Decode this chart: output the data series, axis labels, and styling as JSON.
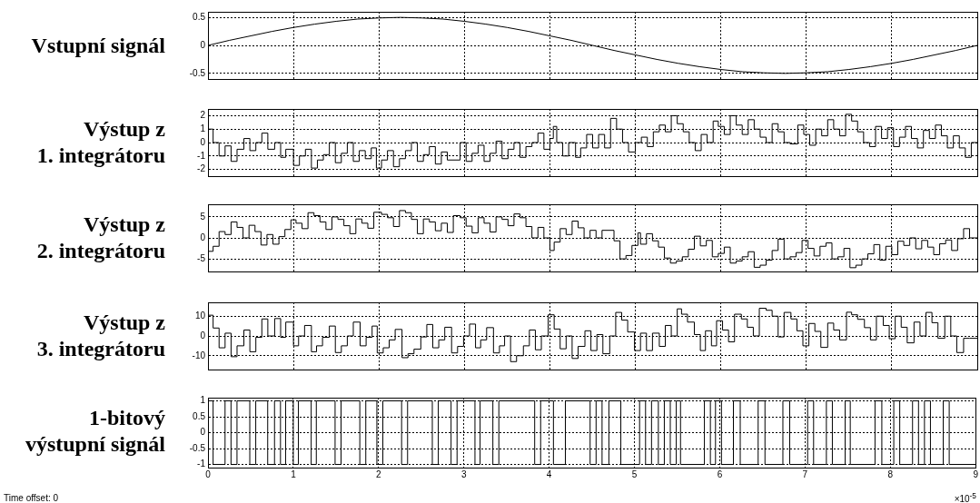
{
  "chart_data": [
    {
      "type": "line",
      "ylabel": "Vstupní signál",
      "xlim": [
        0,
        9
      ],
      "xticks": [
        0,
        1,
        2,
        3,
        4,
        5,
        6,
        7,
        8,
        9
      ],
      "ylim": [
        -0.6,
        0.6
      ],
      "yticks": [
        -0.5,
        0,
        0.5
      ],
      "grid": true,
      "tick_labels": "y",
      "x": [
        0,
        0.25,
        0.5,
        0.75,
        1,
        1.25,
        1.5,
        1.75,
        2,
        2.25,
        2.5,
        2.75,
        3,
        3.25,
        3.5,
        3.75,
        4,
        4.25,
        4.5,
        4.75,
        5,
        5.25,
        5.5,
        5.75,
        6,
        6.25,
        6.5,
        6.75,
        7,
        7.25,
        7.5,
        7.75,
        8,
        8.25,
        8.5,
        8.75,
        9
      ],
      "series": [
        {
          "color": "#000000",
          "values": [
            0,
            0.09,
            0.17,
            0.25,
            0.32,
            0.38,
            0.43,
            0.47,
            0.49,
            0.5,
            0.49,
            0.47,
            0.43,
            0.38,
            0.32,
            0.25,
            0.17,
            0.09,
            0,
            -0.09,
            -0.17,
            -0.25,
            -0.32,
            -0.38,
            -0.43,
            -0.47,
            -0.49,
            -0.5,
            -0.49,
            -0.47,
            -0.43,
            -0.38,
            -0.32,
            -0.25,
            -0.17,
            -0.09,
            0
          ]
        }
      ]
    },
    {
      "type": "step",
      "ylabel": "Výstup z\n1. integrátoru",
      "xlim": [
        0,
        9
      ],
      "xticks": [
        0,
        1,
        2,
        3,
        4,
        5,
        6,
        7,
        8,
        9
      ],
      "ylim": [
        -2.5,
        2.5
      ],
      "yticks": [
        -2,
        -1,
        0,
        1,
        2
      ],
      "grid": true,
      "tick_labels": "y",
      "x": [
        0,
        0.06,
        0.13,
        0.2,
        0.27,
        0.34,
        0.42,
        0.49,
        0.56,
        0.63,
        0.7,
        0.78,
        0.85,
        0.91,
        1.0,
        1.07,
        1.14,
        1.21,
        1.28,
        1.35,
        1.42,
        1.49,
        1.56,
        1.63,
        1.7,
        1.77,
        1.84,
        1.91,
        1.97,
        2.03,
        2.1,
        2.17,
        2.24,
        2.31,
        2.38,
        2.45,
        2.52,
        2.59,
        2.66,
        2.73,
        2.8,
        2.95,
        3.02,
        3.09,
        3.16,
        3.23,
        3.3,
        3.37,
        3.44,
        3.51,
        3.58,
        3.65,
        3.72,
        3.79,
        3.86,
        3.93,
        4.0,
        4.04,
        4.08,
        4.15,
        4.22,
        4.3,
        4.36,
        4.43,
        4.5,
        4.57,
        4.64,
        4.71,
        4.78,
        4.85,
        4.92,
        5.0,
        5.07,
        5.14,
        5.21,
        5.28,
        5.35,
        5.42,
        5.49,
        5.56,
        5.63,
        5.7,
        5.77,
        5.84,
        5.91,
        5.97,
        6.04,
        6.11,
        6.18,
        6.25,
        6.32,
        6.39,
        6.46,
        6.53,
        6.6,
        6.67,
        6.74,
        6.81,
        6.9,
        6.97,
        7.04,
        7.11,
        7.18,
        7.25,
        7.32,
        7.39,
        7.46,
        7.53,
        7.6,
        7.67,
        7.74,
        7.81,
        7.88,
        7.95,
        8.02,
        8.09,
        8.16,
        8.23,
        8.3,
        8.37,
        8.44,
        8.51,
        8.58,
        8.65,
        8.72,
        8.79,
        8.86,
        8.93,
        9
      ],
      "series": [
        {
          "color": "#000000",
          "values": [
            0,
            1,
            0,
            -1,
            -0.25,
            -1.4,
            -0.5,
            0.3,
            -0.6,
            0,
            0.7,
            -0.5,
            0,
            -1.1,
            -0.5,
            -1.7,
            -1,
            -0.5,
            -1.9,
            -1.3,
            -0.9,
            0,
            -1.5,
            -0.8,
            0,
            -1.4,
            -0.6,
            -1.2,
            -0.4,
            -1.9,
            -1.3,
            -0.6,
            -1.8,
            -1.2,
            -0.6,
            0,
            -1.4,
            -0.9,
            -0.3,
            -1.6,
            -0.7,
            -1.3,
            0,
            -1.4,
            -0.8,
            -0.2,
            -1.4,
            -0.8,
            0.1,
            -1.2,
            -0.5,
            0,
            -1.1,
            -0.3,
            0,
            0.7,
            -0.5,
            0.3,
            1.2,
            0,
            -1,
            0,
            -1.1,
            -0.4,
            0.6,
            -0.4,
            0.6,
            -0.4,
            1.8,
            1,
            0,
            -0.7,
            0,
            0.4,
            -0.3,
            0.8,
            1.3,
            0.8,
            2,
            1.4,
            0.8,
            0,
            -0.6,
            0.6,
            0,
            1.6,
            1.2,
            0.6,
            2,
            1.3,
            0.6,
            1.7,
            1,
            0.4,
            0,
            1.4,
            0.8,
            0,
            -0.1,
            1.3,
            0.6,
            -0.2,
            1,
            0.5,
            1.7,
            1,
            0.5,
            2.1,
            1.6,
            0.8,
            0,
            -0.3,
            1.2,
            0.3,
            1.1,
            -0.3,
            0.4,
            1.2,
            0.3,
            -0.4,
            0.9,
            0.3,
            1.3,
            0.5,
            -0.4,
            0.5,
            -0.4,
            -1.1,
            0
          ]
        }
      ]
    },
    {
      "type": "step",
      "ylabel": "Výstup z\n2. integrátoru",
      "xlim": [
        0,
        9
      ],
      "xticks": [
        0,
        1,
        2,
        3,
        4,
        5,
        6,
        7,
        8,
        9
      ],
      "ylim": [
        -8,
        8
      ],
      "yticks": [
        -5,
        0,
        5
      ],
      "grid": true,
      "tick_labels": "y",
      "x": [
        0,
        0.06,
        0.13,
        0.2,
        0.27,
        0.34,
        0.41,
        0.48,
        0.55,
        0.62,
        0.69,
        0.76,
        0.83,
        0.9,
        0.97,
        1.03,
        1.1,
        1.17,
        1.24,
        1.31,
        1.38,
        1.45,
        1.52,
        1.59,
        1.66,
        1.73,
        1.8,
        1.87,
        1.94,
        2.03,
        2.1,
        2.17,
        2.24,
        2.31,
        2.38,
        2.45,
        2.52,
        2.59,
        2.66,
        2.73,
        2.8,
        2.87,
        2.95,
        3.02,
        3.09,
        3.16,
        3.23,
        3.3,
        3.37,
        3.44,
        3.51,
        3.58,
        3.65,
        3.72,
        3.79,
        3.86,
        3.93,
        4.0,
        4.05,
        4.12,
        4.19,
        4.26,
        4.33,
        4.4,
        4.47,
        4.54,
        4.61,
        4.75,
        4.82,
        4.89,
        4.96,
        5.03,
        5.06,
        5.13,
        5.2,
        5.27,
        5.34,
        5.41,
        5.48,
        5.55,
        5.62,
        5.69,
        5.76,
        5.83,
        5.9,
        5.97,
        6.04,
        6.11,
        6.18,
        6.25,
        6.32,
        6.39,
        6.46,
        6.53,
        6.6,
        6.67,
        6.74,
        6.81,
        6.88,
        6.95,
        7.02,
        7.09,
        7.16,
        7.23,
        7.3,
        7.37,
        7.44,
        7.51,
        7.58,
        7.65,
        7.72,
        7.79,
        7.86,
        7.93,
        8.0,
        8.07,
        8.14,
        8.21,
        8.28,
        8.35,
        8.42,
        8.49,
        8.56,
        8.63,
        8.7,
        8.77,
        8.84,
        8.91,
        8.97,
        9
      ],
      "series": [
        {
          "color": "#000000",
          "values": [
            0,
            -3.2,
            -2,
            1.5,
            0.8,
            3.8,
            2.5,
            0,
            3,
            1.5,
            -1.7,
            0.8,
            -1.5,
            0.3,
            2,
            4.3,
            3.5,
            2.2,
            6,
            5.3,
            3.8,
            2,
            5,
            4.4,
            2.9,
            1,
            4.5,
            3.5,
            2.3,
            6.1,
            5.6,
            4.8,
            2.7,
            6.5,
            6,
            4.4,
            1,
            4.5,
            3.8,
            1.7,
            3.5,
            1.3,
            5.3,
            4.8,
            2.8,
            1.2,
            4.8,
            3.5,
            1.4,
            5,
            4.4,
            2.9,
            5.7,
            4.8,
            2.7,
            0,
            2.5,
            0,
            -3,
            -1,
            2.2,
            0.8,
            4,
            2.4,
            0,
            1.8,
            0,
            1.8,
            -0.7,
            -5,
            -4.2,
            -1.8,
            1.2,
            -1.5,
            1,
            -0.7,
            -2.2,
            -4.8,
            -6,
            -5.5,
            -4.5,
            -2.7,
            0.4,
            -1.9,
            -0.6,
            -4.5,
            -3.7,
            -2.2,
            -6,
            -5.5,
            -4.5,
            -3.3,
            -7,
            -6.5,
            -5.3,
            -3,
            -0.3,
            -5,
            -4.5,
            -3.5,
            -0.6,
            -2.5,
            -4.3,
            -2,
            -1.2,
            -5,
            -4.5,
            -2.5,
            -7.1,
            -6.5,
            -5,
            -3.8,
            -1.6,
            -5.3,
            -2,
            -4,
            -0.8,
            -1.8,
            0,
            -2.6,
            -0.6,
            -2.2,
            -4,
            -1.4,
            -0.5,
            -3,
            -0.2,
            2.2,
            0,
            0
          ]
        }
      ]
    },
    {
      "type": "step",
      "ylabel": "Výstup z\n3. integrátoru",
      "xlim": [
        0,
        9
      ],
      "xticks": [
        0,
        1,
        2,
        3,
        4,
        5,
        6,
        7,
        8,
        9
      ],
      "ylim": [
        -17,
        17
      ],
      "yticks": [
        -10,
        0,
        10
      ],
      "grid": true,
      "tick_labels": "y",
      "x": [
        0,
        0.06,
        0.13,
        0.2,
        0.27,
        0.34,
        0.42,
        0.49,
        0.56,
        0.63,
        0.7,
        0.78,
        0.85,
        0.91,
        1.0,
        1.06,
        1.13,
        1.21,
        1.27,
        1.34,
        1.42,
        1.49,
        1.56,
        1.63,
        1.7,
        1.78,
        1.85,
        1.92,
        1.98,
        2.05,
        2.12,
        2.19,
        2.27,
        2.34,
        2.41,
        2.49,
        2.56,
        2.63,
        2.7,
        2.77,
        2.85,
        2.92,
        2.99,
        3.06,
        3.13,
        3.19,
        3.26,
        3.34,
        3.41,
        3.47,
        3.54,
        3.61,
        3.69,
        3.76,
        3.83,
        3.9,
        3.98,
        4.05,
        4.12,
        4.19,
        4.26,
        4.33,
        4.41,
        4.48,
        4.55,
        4.62,
        4.7,
        4.77,
        4.84,
        4.91,
        4.99,
        5.06,
        5.13,
        5.2,
        5.28,
        5.35,
        5.42,
        5.49,
        5.54,
        5.61,
        5.69,
        5.76,
        5.82,
        5.89,
        5.95,
        6.02,
        6.09,
        6.16,
        6.24,
        6.31,
        6.38,
        6.45,
        6.53,
        6.6,
        6.67,
        6.74,
        6.82,
        6.89,
        6.96,
        7.03,
        7.1,
        7.17,
        7.25,
        7.32,
        7.39,
        7.47,
        7.53,
        7.6,
        7.68,
        7.75,
        7.82,
        7.9,
        7.97,
        8.04,
        8.11,
        8.18,
        8.26,
        8.33,
        8.4,
        8.47,
        8.54,
        8.62,
        8.69,
        8.76,
        8.84,
        8.91,
        9
      ],
      "series": [
        {
          "color": "#000000",
          "values": [
            0,
            10.5,
            4,
            -6,
            1.4,
            -10.5,
            -5,
            3,
            -8,
            -0.7,
            8.6,
            0,
            8.8,
            -0.7,
            7,
            -5,
            0,
            5.3,
            -8,
            -5,
            -0.7,
            5,
            -8.4,
            -5,
            0,
            7,
            -5,
            -0.7,
            5,
            -8.6,
            -6,
            -2,
            3.3,
            -11,
            -9,
            -6.7,
            -0.5,
            5.8,
            -6,
            -2,
            4.4,
            -8.6,
            -5.3,
            0,
            6,
            -6,
            -2,
            4.2,
            -8.6,
            -5,
            0,
            -13,
            -10,
            -5,
            3,
            -7,
            0,
            10.7,
            3.5,
            -6.5,
            0,
            -11.4,
            -5.3,
            2.6,
            -7.4,
            0.7,
            -9,
            0,
            11.9,
            8,
            2,
            -7.4,
            1.4,
            -7.4,
            1.4,
            -5.3,
            5.3,
            0,
            13.7,
            11,
            7,
            0.7,
            -7.4,
            2.6,
            -5,
            7.7,
            3,
            -3,
            11,
            8.6,
            4.4,
            0,
            14,
            13,
            10,
            -0.5,
            11.9,
            8.6,
            2.6,
            -5,
            6.3,
            2.3,
            -5.8,
            6.5,
            3,
            -2,
            12,
            10.7,
            8.4,
            4.2,
            -2,
            10,
            5.3,
            -1.4,
            10,
            4.4,
            -3.5,
            7,
            0,
            11.9,
            6.7,
            -1.2,
            10,
            0,
            -8.4,
            -1.2,
            -1.2
          ]
        }
      ]
    },
    {
      "type": "step",
      "ylabel": "1-bitový\nvýstupní signál",
      "xlabel": "×10$^{-5}$",
      "annotations": [
        "Time offset:  0"
      ],
      "xlim": [
        0,
        9
      ],
      "xticks": [
        0,
        1,
        2,
        3,
        4,
        5,
        6,
        7,
        8,
        9
      ],
      "ylim": [
        -1.1,
        1.1
      ],
      "yticks": [
        -1,
        -0.5,
        0,
        0.5,
        1
      ],
      "grid": true,
      "x": [
        0,
        0.06,
        0.2,
        0.27,
        0.34,
        0.49,
        0.56,
        0.7,
        0.78,
        0.85,
        0.91,
        1.0,
        1.06,
        1.21,
        1.27,
        1.49,
        1.56,
        1.78,
        1.85,
        1.98,
        2.05,
        2.27,
        2.34,
        2.63,
        2.7,
        2.85,
        2.92,
        3.13,
        3.19,
        3.34,
        3.41,
        3.83,
        3.9,
        4.05,
        4.19,
        4.48,
        4.55,
        4.62,
        4.7,
        4.84,
        5.06,
        5.13,
        5.2,
        5.28,
        5.35,
        5.42,
        5.49,
        5.54,
        5.82,
        5.89,
        5.95,
        6.02,
        6.16,
        6.24,
        6.45,
        6.53,
        6.74,
        6.82,
        7.03,
        7.1,
        7.25,
        7.32,
        7.47,
        7.53,
        7.82,
        7.9,
        8.04,
        8.11,
        8.26,
        8.33,
        8.4,
        8.47,
        8.62,
        8.69,
        8.76,
        9
      ],
      "series": [
        {
          "color": "#000000",
          "values": [
            -1,
            1,
            -1,
            1,
            -1,
            1,
            -1,
            1,
            -1,
            1,
            -1,
            1,
            -1,
            1,
            -1,
            1,
            -1,
            1,
            -1,
            1,
            -1,
            1,
            -1,
            1,
            -1,
            1,
            -1,
            1,
            -1,
            1,
            -1,
            1,
            -1,
            1,
            -1,
            1,
            -1,
            1,
            -1,
            1,
            -1,
            1,
            -1,
            1,
            -1,
            1,
            -1,
            1,
            -1,
            1,
            -1,
            1,
            -1,
            1,
            -1,
            1,
            -1,
            1,
            -1,
            1,
            -1,
            1,
            -1,
            1,
            -1,
            1,
            -1,
            1,
            -1,
            1,
            -1,
            1,
            -1,
            1,
            -1,
            -1
          ]
        }
      ]
    }
  ]
}
